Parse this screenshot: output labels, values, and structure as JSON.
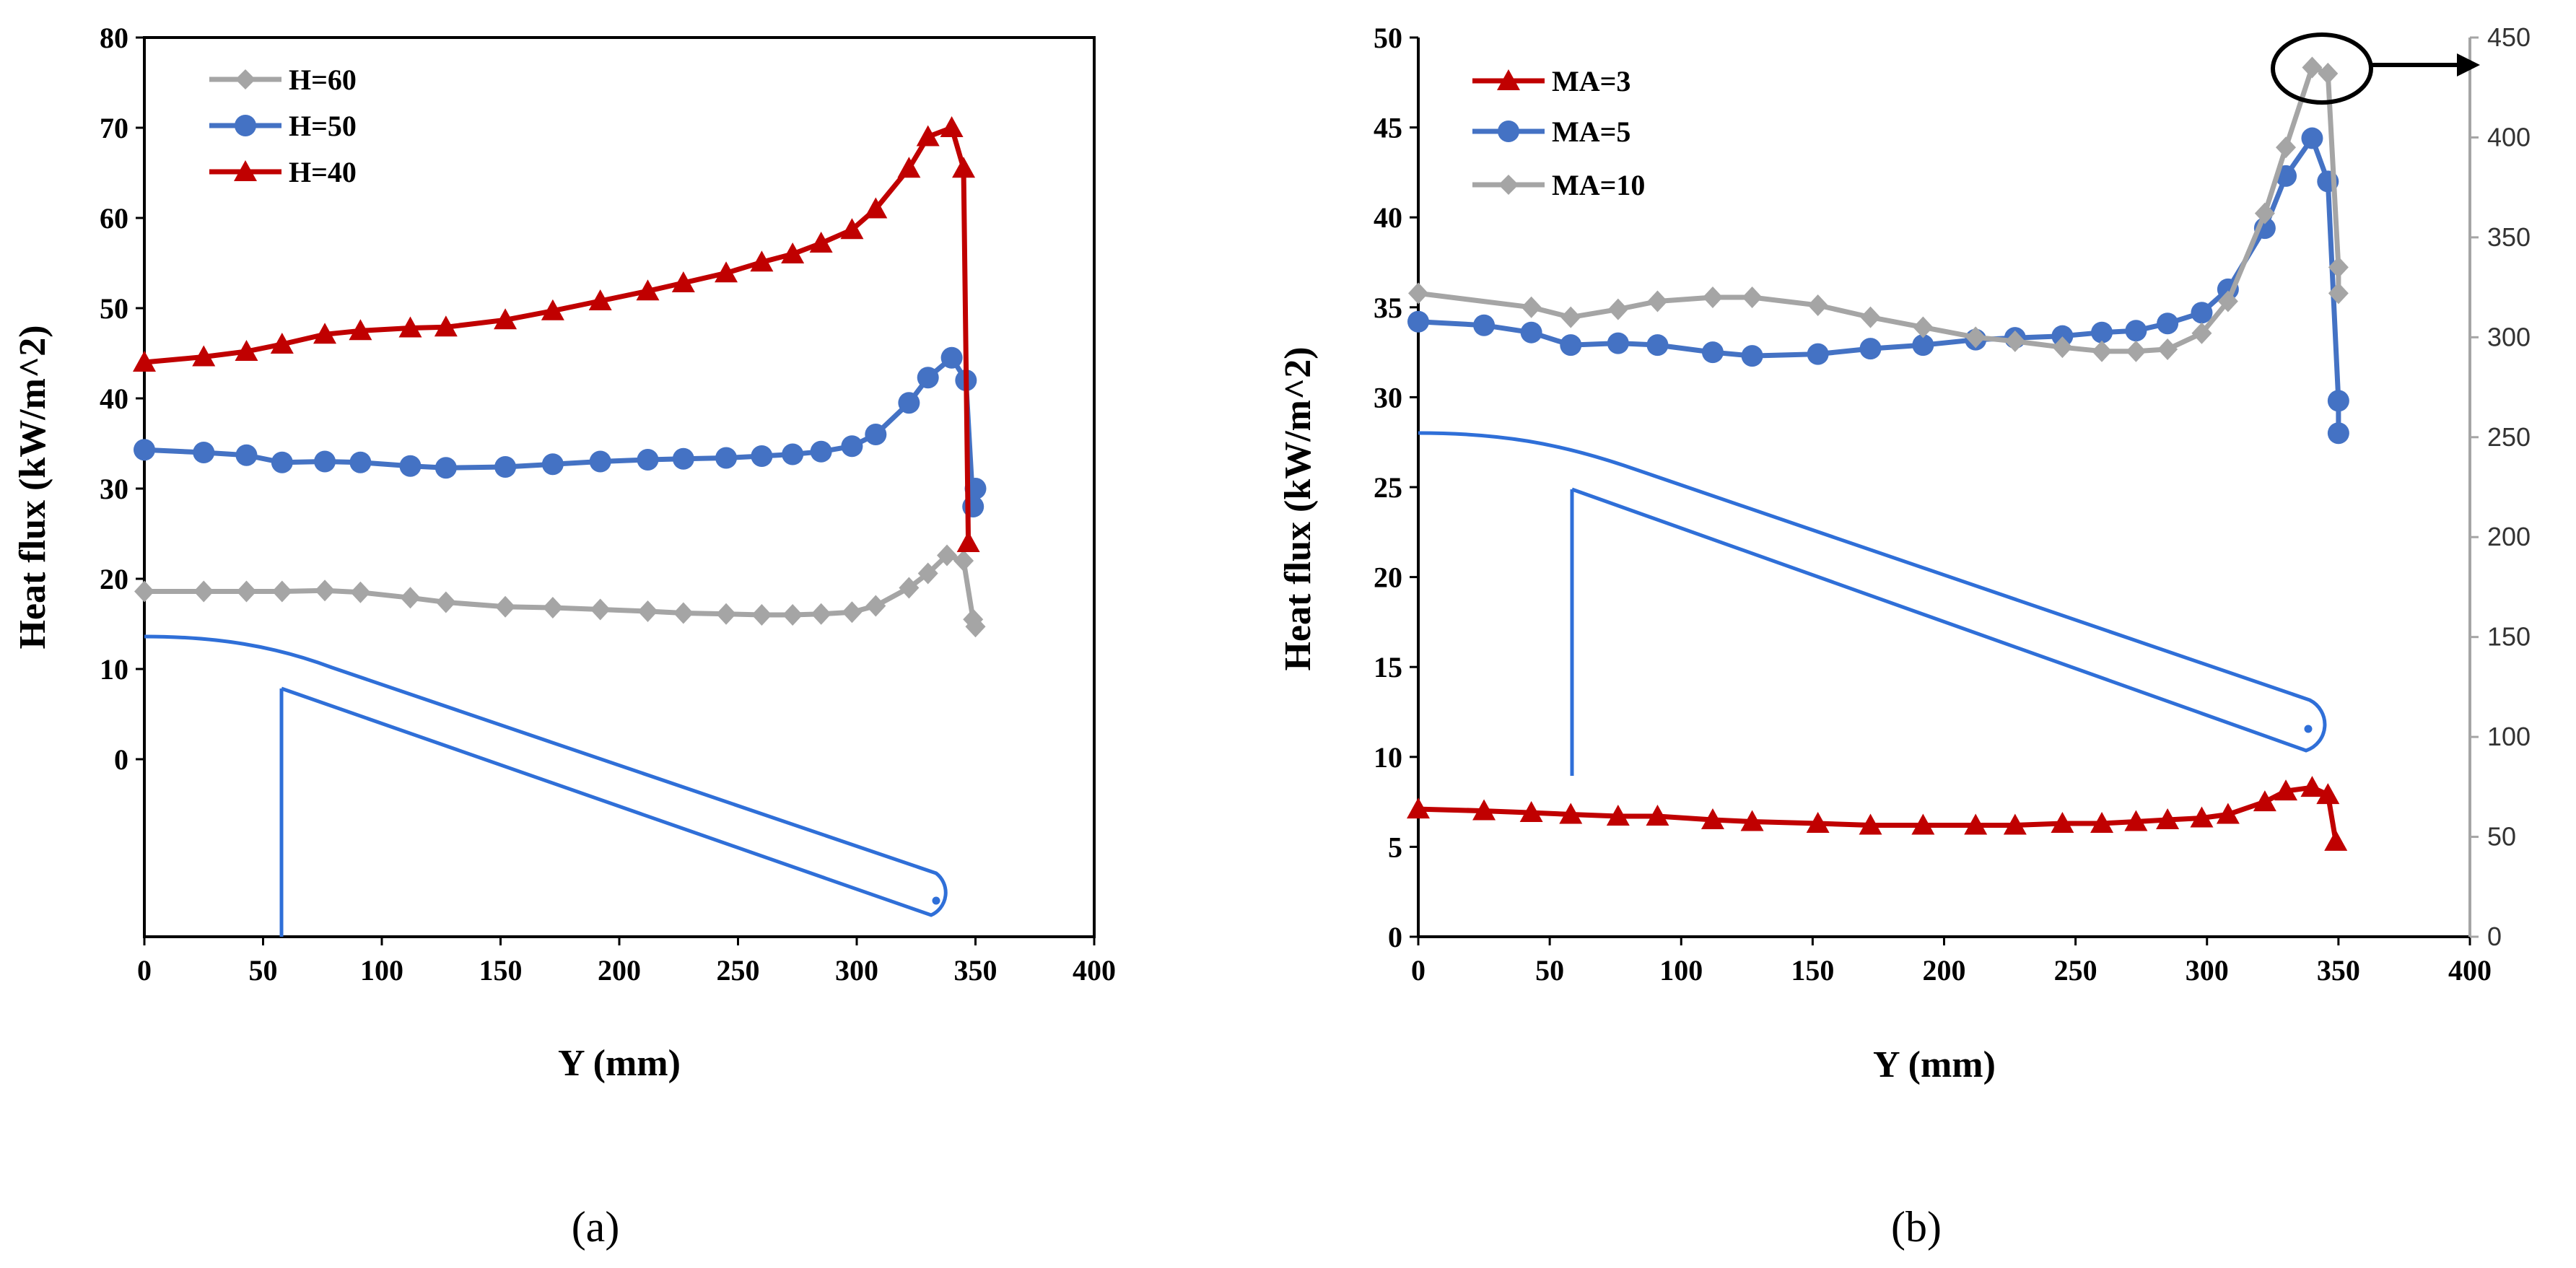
{
  "colors": {
    "gray": "#A5A5A5",
    "blue": "#4472C4",
    "red": "#C00000",
    "axis": "#000000",
    "sketch": "#2F6FD8"
  },
  "chart_data": [
    {
      "type": "line",
      "panel_label": "(a)",
      "xlabel": "Y (mm)",
      "ylabel": "Heat flux (kW/m^2)",
      "xlim": [
        0,
        400
      ],
      "ylim": [
        -20,
        80
      ],
      "xticks": [
        0,
        50,
        100,
        150,
        200,
        250,
        300,
        350,
        400
      ],
      "yticks": [
        0,
        10,
        20,
        30,
        40,
        50,
        60,
        70,
        80
      ],
      "legend_position": "top-left",
      "series": [
        {
          "name": "H=60",
          "color": "#A5A5A5",
          "marker": "diamond",
          "x": [
            0,
            25,
            43,
            58,
            76,
            91,
            112,
            127,
            152,
            172,
            192,
            212,
            227,
            245,
            260,
            273,
            285,
            298,
            308,
            322,
            330,
            338,
            345,
            349,
            350
          ],
          "y": [
            18.6,
            18.6,
            18.6,
            18.6,
            18.7,
            18.5,
            17.9,
            17.4,
            16.9,
            16.8,
            16.6,
            16.4,
            16.2,
            16.1,
            16.0,
            16.0,
            16.1,
            16.3,
            17.0,
            19.0,
            20.6,
            22.6,
            22.0,
            15.5,
            14.7
          ]
        },
        {
          "name": "H=50",
          "color": "#4472C4",
          "marker": "circle",
          "x": [
            0,
            25,
            43,
            58,
            76,
            91,
            112,
            127,
            152,
            172,
            192,
            212,
            227,
            245,
            260,
            273,
            285,
            298,
            308,
            322,
            330,
            340,
            346,
            349,
            350
          ],
          "y": [
            34.3,
            34.0,
            33.7,
            32.9,
            33.0,
            32.9,
            32.5,
            32.3,
            32.4,
            32.7,
            33.0,
            33.2,
            33.3,
            33.4,
            33.6,
            33.8,
            34.1,
            34.7,
            36.0,
            39.5,
            42.3,
            44.5,
            42.0,
            28.0,
            30.0
          ]
        },
        {
          "name": "H=40",
          "color": "#C00000",
          "marker": "triangle",
          "x": [
            0,
            25,
            43,
            58,
            76,
            91,
            112,
            127,
            152,
            172,
            192,
            212,
            227,
            245,
            260,
            273,
            285,
            298,
            308,
            322,
            330,
            340,
            345,
            347
          ],
          "y": [
            44.0,
            44.6,
            45.2,
            46.0,
            47.1,
            47.5,
            47.8,
            47.9,
            48.7,
            49.7,
            50.8,
            51.9,
            52.8,
            53.9,
            55.1,
            56.0,
            57.2,
            58.7,
            61.0,
            65.5,
            69.0,
            70.0,
            65.5,
            24.0
          ]
        }
      ]
    },
    {
      "type": "line",
      "panel_label": "(b)",
      "xlabel": "Y (mm)",
      "ylabel": "Heat flux (kW/m^2)",
      "xlim": [
        0,
        400
      ],
      "ylim": [
        0,
        50
      ],
      "xticks": [
        0,
        50,
        100,
        150,
        200,
        250,
        300,
        350,
        400
      ],
      "yticks": [
        0,
        5,
        10,
        15,
        20,
        25,
        30,
        35,
        40,
        45,
        50
      ],
      "y2lim": [
        0,
        450
      ],
      "y2ticks": [
        0,
        50,
        100,
        150,
        200,
        250,
        300,
        350,
        400,
        450
      ],
      "legend_position": "top-left",
      "annotation": "MA=10 peak circled with arrow to secondary axis",
      "series": [
        {
          "name": "MA=3",
          "color": "#C00000",
          "marker": "triangle",
          "axis": "left",
          "x": [
            0,
            25,
            43,
            58,
            76,
            91,
            112,
            127,
            152,
            172,
            192,
            212,
            227,
            245,
            260,
            273,
            285,
            298,
            308,
            322,
            330,
            340,
            346,
            349
          ],
          "y": [
            7.1,
            7.0,
            6.9,
            6.8,
            6.7,
            6.7,
            6.5,
            6.4,
            6.3,
            6.2,
            6.2,
            6.2,
            6.2,
            6.3,
            6.3,
            6.4,
            6.5,
            6.6,
            6.8,
            7.5,
            8.1,
            8.3,
            7.9,
            5.3
          ]
        },
        {
          "name": "MA=5",
          "color": "#4472C4",
          "marker": "circle",
          "axis": "left",
          "x": [
            0,
            25,
            43,
            58,
            76,
            91,
            112,
            127,
            152,
            172,
            192,
            212,
            227,
            245,
            260,
            273,
            285,
            298,
            308,
            322,
            330,
            340,
            346,
            350,
            350
          ],
          "y": [
            34.2,
            34.0,
            33.6,
            32.9,
            33.0,
            32.9,
            32.5,
            32.3,
            32.4,
            32.7,
            32.9,
            33.2,
            33.3,
            33.4,
            33.6,
            33.7,
            34.1,
            34.7,
            36.0,
            39.4,
            42.3,
            44.4,
            42.0,
            29.8,
            28.0
          ]
        },
        {
          "name": "MA=10",
          "color": "#A5A5A5",
          "marker": "diamond",
          "axis": "right",
          "x": [
            0,
            43,
            58,
            76,
            91,
            112,
            127,
            152,
            172,
            192,
            212,
            227,
            245,
            260,
            273,
            285,
            298,
            308,
            322,
            330,
            340,
            346,
            350,
            350
          ],
          "y": [
            322,
            315,
            310,
            314,
            318,
            320,
            320,
            316,
            310,
            305,
            300,
            298,
            295,
            293,
            293,
            294,
            302,
            318,
            362,
            395,
            435,
            432,
            335,
            322
          ]
        }
      ]
    }
  ]
}
